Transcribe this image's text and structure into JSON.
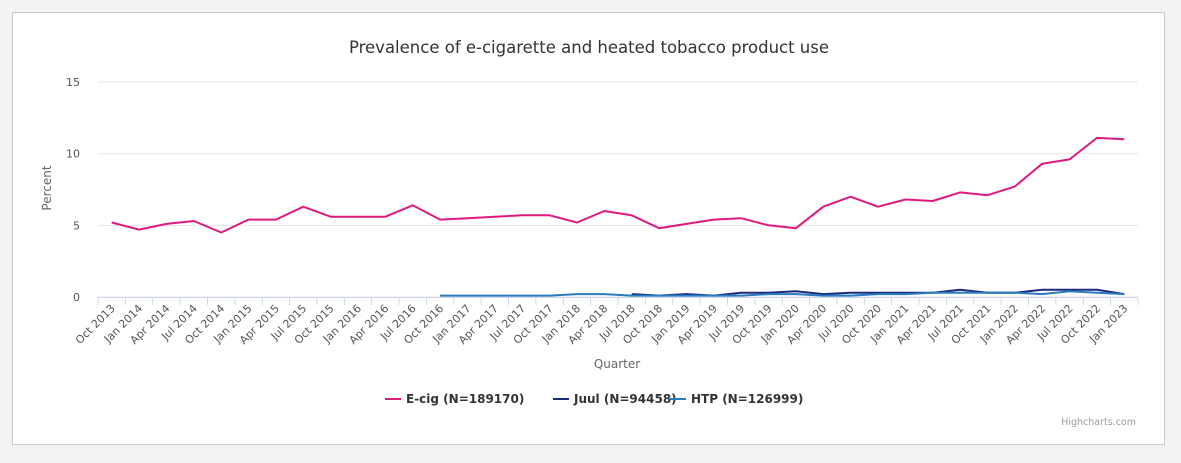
{
  "chart_data": {
    "type": "line",
    "title": "Prevalence of e-cigarette and heated tobacco product use",
    "xlabel": "Quarter",
    "ylabel": "Percent",
    "ylim": [
      0,
      15
    ],
    "yticks": [
      "0",
      "5",
      "10",
      "15"
    ],
    "grid": true,
    "legend_position": "bottom-center",
    "credits": "Highcharts.com",
    "categories": [
      "Oct 2013",
      "Jan 2014",
      "Apr 2014",
      "Jul 2014",
      "Oct 2014",
      "Jan 2015",
      "Apr 2015",
      "Jul 2015",
      "Oct 2015",
      "Jan 2016",
      "Apr 2016",
      "Jul 2016",
      "Oct 2016",
      "Jan 2017",
      "Apr 2017",
      "Jul 2017",
      "Oct 2017",
      "Jan 2018",
      "Apr 2018",
      "Jul 2018",
      "Oct 2018",
      "Jan 2019",
      "Apr 2019",
      "Jul 2019",
      "Oct 2019",
      "Jan 2020",
      "Apr 2020",
      "Jul 2020",
      "Oct 2020",
      "Jan 2021",
      "Apr 2021",
      "Jul 2021",
      "Oct 2021",
      "Jan 2022",
      "Apr 2022",
      "Jul 2022",
      "Oct 2022",
      "Jan 2023"
    ],
    "series": [
      {
        "name": "E-cig (N=189170)",
        "color": "#e0197d",
        "values": [
          5.2,
          4.7,
          5.1,
          5.3,
          4.5,
          5.4,
          5.4,
          6.3,
          5.6,
          5.6,
          5.6,
          6.4,
          5.4,
          5.5,
          5.6,
          5.7,
          5.7,
          5.2,
          6.0,
          5.7,
          4.8,
          5.1,
          5.4,
          5.5,
          5.0,
          4.8,
          6.3,
          7.0,
          6.3,
          6.8,
          6.7,
          7.3,
          7.1,
          7.7,
          9.3,
          9.6,
          11.1,
          11.0
        ]
      },
      {
        "name": "Juul (N=94458)",
        "color": "#1b2a7a",
        "values": [
          null,
          null,
          null,
          null,
          null,
          null,
          null,
          null,
          null,
          null,
          null,
          null,
          null,
          null,
          null,
          null,
          null,
          null,
          null,
          0.2,
          0.1,
          0.2,
          0.1,
          0.3,
          0.3,
          0.4,
          0.2,
          0.3,
          0.3,
          0.3,
          0.3,
          0.5,
          0.3,
          0.3,
          0.5,
          0.5,
          0.5,
          0.2
        ]
      },
      {
        "name": "HTP (N=126999)",
        "color": "#2b7bbf",
        "values": [
          null,
          null,
          null,
          null,
          null,
          null,
          null,
          null,
          null,
          null,
          null,
          null,
          0.1,
          0.1,
          0.1,
          0.1,
          0.1,
          0.2,
          0.2,
          0.1,
          0.1,
          0.1,
          0.1,
          0.1,
          0.2,
          0.2,
          0.1,
          0.1,
          0.2,
          0.2,
          0.3,
          0.3,
          0.3,
          0.3,
          0.2,
          0.4,
          0.3,
          0.2
        ]
      }
    ]
  }
}
